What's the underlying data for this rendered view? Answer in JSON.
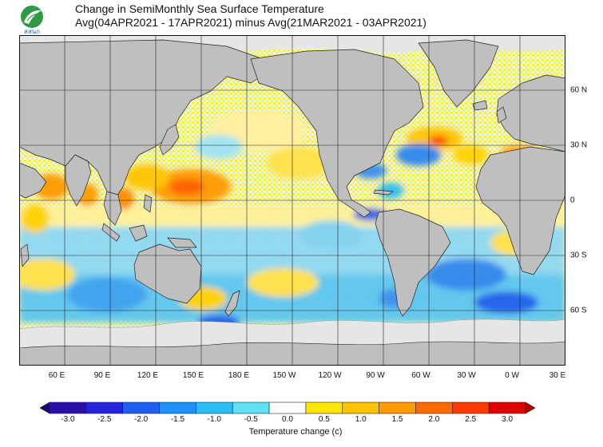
{
  "header": {
    "logo_text": "สสนก",
    "title_line1": "Change in SemiMonthly Sea Surface Temperature",
    "title_line2": "Avg(04APR2021 - 17APR2021) minus Avg(21MAR2021 - 03APR2021)"
  },
  "map": {
    "type": "heatmap",
    "projection": "equirectangular",
    "lon_range": [
      30,
      390
    ],
    "lat_range": [
      -90,
      90
    ],
    "grid_lines": true,
    "land_color": "#bfbfbf",
    "ice_color": "#e6e6e6",
    "lon_ticks": [
      "60 E",
      "90 E",
      "120 E",
      "150 E",
      "180 E",
      "150 W",
      "120 W",
      "90 W",
      "60 W",
      "30 W",
      "0 W",
      "30 E"
    ],
    "lat_ticks": [
      "60 N",
      "30 N",
      "0",
      "30 S",
      "60 S"
    ]
  },
  "chart_data": {
    "type": "heatmap",
    "title": "Change in SemiMonthly Sea Surface Temperature",
    "subtitle": "Avg(04APR2021 - 17APR2021) minus Avg(21MAR2021 - 03APR2021)",
    "legend_placement": "bottom",
    "colorbar_label": "Temperature change  (c)",
    "colorbar_ticks": [
      "-3.0",
      "-2.5",
      "-2.0",
      "-1.5",
      "-1.0",
      "-0.5",
      "0.0",
      "0.5",
      "1.0",
      "1.5",
      "2.0",
      "2.5",
      "3.0"
    ],
    "colorbar_colors": [
      "#2b0fa6",
      "#2424e0",
      "#1e5ff0",
      "#1e90ff",
      "#2bbdf5",
      "#5fe0f5",
      "#ffffff",
      "#ffe600",
      "#ffc400",
      "#ff9a00",
      "#ff6a00",
      "#ff3b00",
      "#e00000"
    ],
    "warm_regions": [
      "Northwest Pacific",
      "Bay of Bengal",
      "Arabian Sea",
      "North Atlantic near 45 N 45 W",
      "Mediterranean Sea"
    ],
    "cool_regions": [
      "Southern Ocean south of Australia",
      "South Atlantic",
      "Gulf of Mexico / Caribbean",
      "Eastern tropical Pacific"
    ]
  }
}
